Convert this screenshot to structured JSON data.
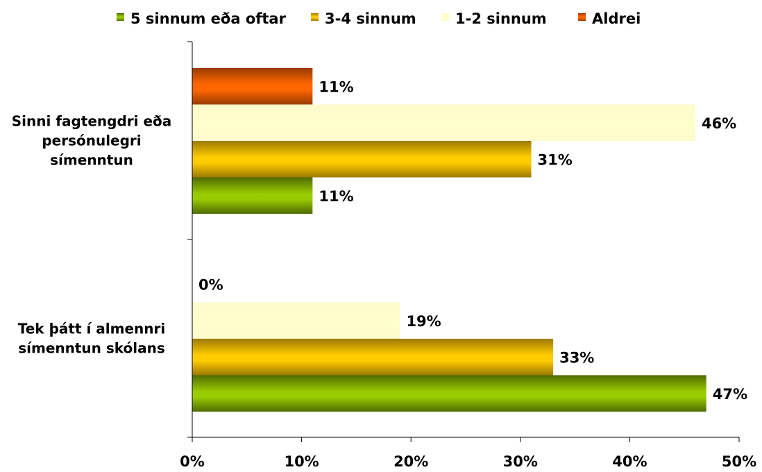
{
  "chart_data": {
    "type": "bar",
    "orientation": "horizontal",
    "categories": [
      "Sinni fagtengdri eða persónulegri símenntun",
      "Tek þátt í almennri símenntun skólans"
    ],
    "series": [
      {
        "name": "5 sinnum eða oftar",
        "values": [
          11,
          47
        ],
        "labels": [
          "11%",
          "47%"
        ],
        "color_light": "#99cc00",
        "color_dark": "#4f6b00"
      },
      {
        "name": "3-4 sinnum",
        "values": [
          31,
          33
        ],
        "labels": [
          "31%",
          "33%"
        ],
        "color_light": "#ffcc00",
        "color_dark": "#9c7a00"
      },
      {
        "name": "1-2 sinnum",
        "values": [
          46,
          19
        ],
        "labels": [
          "46%",
          "19%"
        ],
        "color_light": "#ffffcc",
        "color_dark": "#fbfbcc"
      },
      {
        "name": "Aldrei",
        "values": [
          11,
          0
        ],
        "labels": [
          "11%",
          "0%"
        ],
        "color_light": "#ff6600",
        "color_dark": "#993d00"
      }
    ],
    "xlim": [
      0,
      50
    ],
    "x_ticks": [
      "0%",
      "10%",
      "20%",
      "30%",
      "40%",
      "50%"
    ],
    "legend_position": "top",
    "grid": false
  }
}
